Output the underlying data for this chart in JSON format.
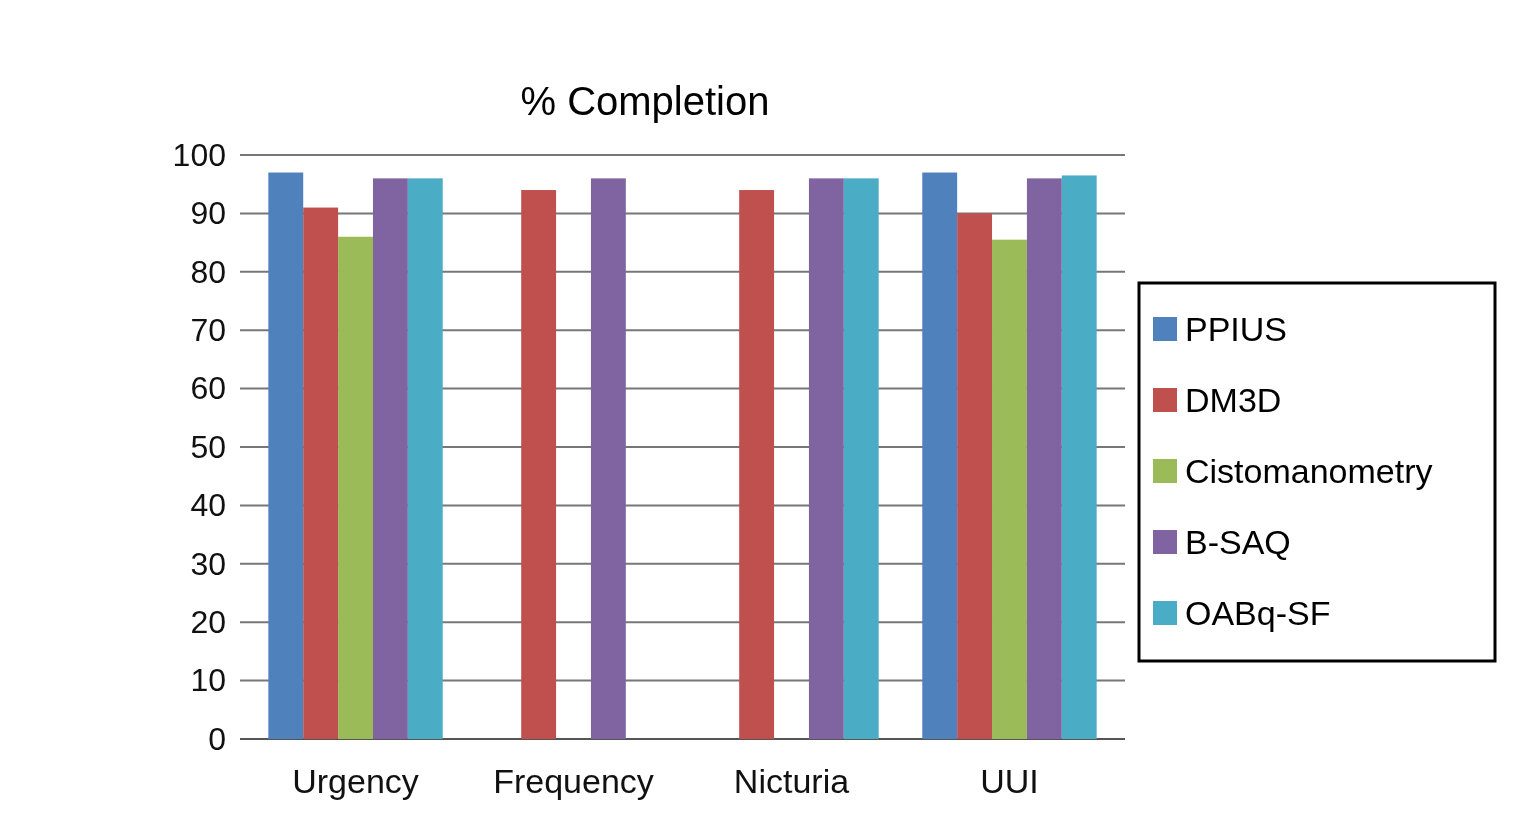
{
  "chart_data": {
    "type": "bar",
    "title": "% Completion",
    "categories": [
      "Urgency",
      "Frequency",
      "Nicturia",
      "UUI"
    ],
    "series": [
      {
        "name": "PPIUS",
        "color": "#4f81bd",
        "values": [
          97,
          null,
          null,
          97
        ]
      },
      {
        "name": "DM3D",
        "color": "#c0504d",
        "values": [
          91,
          94,
          94,
          90
        ]
      },
      {
        "name": "Cistomanometry",
        "color": "#9bbb59",
        "values": [
          86,
          null,
          null,
          85.5
        ]
      },
      {
        "name": "B-SAQ",
        "color": "#8064a2",
        "values": [
          96,
          96,
          96,
          96
        ]
      },
      {
        "name": "OABq-SF",
        "color": "#4bacc6",
        "values": [
          96,
          null,
          96,
          96.5
        ]
      }
    ],
    "ylim": [
      0,
      100
    ],
    "yticks": [
      0,
      10,
      20,
      30,
      40,
      50,
      60,
      70,
      80,
      90,
      100
    ],
    "grid": "y",
    "legend": "right"
  }
}
